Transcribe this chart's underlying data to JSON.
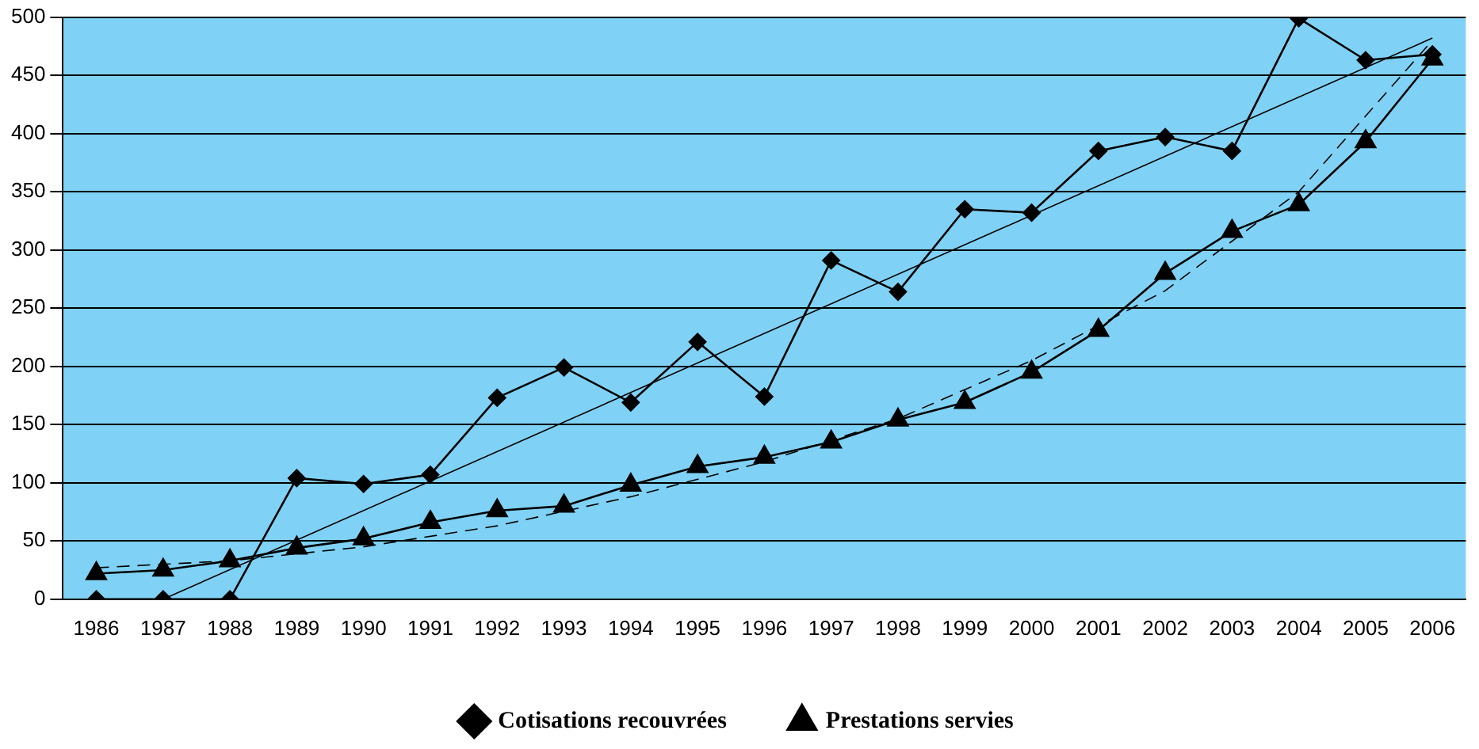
{
  "chart_data": {
    "type": "line",
    "categories": [
      "1986",
      "1987",
      "1988",
      "1989",
      "1990",
      "1991",
      "1992",
      "1993",
      "1994",
      "1995",
      "1996",
      "1997",
      "1998",
      "1999",
      "2000",
      "2001",
      "2002",
      "2003",
      "2004",
      "2005",
      "2006"
    ],
    "ylim": [
      0,
      500
    ],
    "yticks": [
      0,
      50,
      100,
      150,
      200,
      250,
      300,
      350,
      400,
      450,
      500
    ],
    "grid": "y",
    "legend": "bottom",
    "line_style": "solid",
    "series": [
      {
        "name": "Cotisations recouvrées",
        "color": "#000000",
        "marker": "diamond",
        "values": [
          0,
          0,
          0,
          104,
          99,
          107,
          173,
          199,
          169,
          221,
          174,
          291,
          264,
          335,
          332,
          385,
          397,
          385,
          499,
          463,
          468
        ]
      },
      {
        "name": "Prestations servies",
        "color": "#000000",
        "marker": "triangle",
        "values": [
          22,
          25,
          33,
          44,
          52,
          66,
          76,
          80,
          98,
          114,
          122,
          135,
          154,
          169,
          195,
          231,
          280,
          316,
          339,
          393,
          464
        ]
      },
      {
        "color": "#000000",
        "marker": "none",
        "values": [
          null,
          0,
          null,
          null,
          null,
          null,
          null,
          null,
          null,
          null,
          null,
          null,
          null,
          null,
          null,
          null,
          null,
          null,
          null,
          null,
          482
        ]
      },
      {
        "color": "#000000",
        "marker": "none",
        "line_style": "dashed",
        "values": [
          27,
          null,
          33,
          null,
          45,
          null,
          63,
          null,
          88,
          null,
          118,
          null,
          155,
          null,
          205,
          null,
          265,
          null,
          350,
          null,
          480
        ]
      }
    ]
  }
}
